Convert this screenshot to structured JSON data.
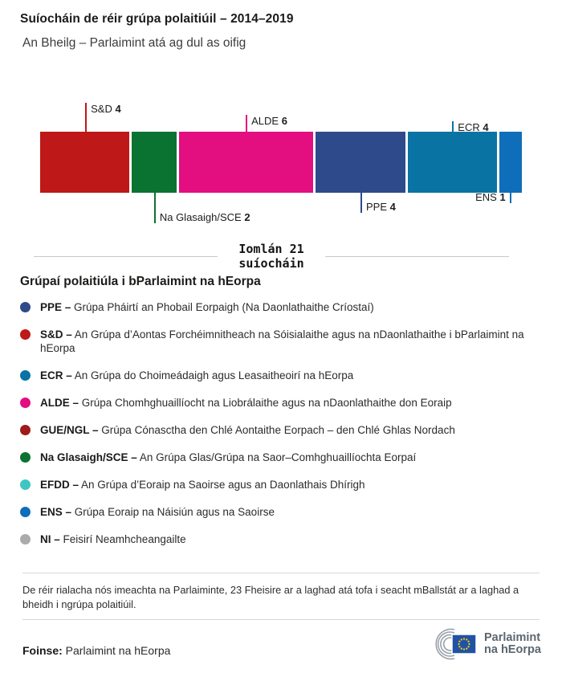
{
  "header": {
    "title": "Suíocháin de réir grúpa polaitiúil – 2014–2019",
    "subtitle": "An Bheilg – Parlaimint atá ag dul as oifig"
  },
  "chart_data": {
    "type": "bar",
    "orientation": "horizontal-stacked",
    "title": "Suíocháin de réir grúpa polaitiúil – 2014–2019",
    "subtitle": "An Bheilg – Parlaimint atá ag dul as oifig",
    "total_seats": 21,
    "categories": [
      "S&D",
      "Na Glasaigh/SCE",
      "ALDE",
      "PPE",
      "ECR",
      "ENS"
    ],
    "values": [
      4,
      2,
      6,
      4,
      4,
      1
    ],
    "segments": [
      {
        "group": "S&D",
        "seats": 4,
        "color": "#be1818",
        "callout": "up",
        "tick_len": 36
      },
      {
        "group": "Na Glasaigh/SCE",
        "seats": 2,
        "color": "#0b7331",
        "callout": "down",
        "tick_len": 38
      },
      {
        "group": "ALDE",
        "seats": 6,
        "color": "#e30e80",
        "callout": "up",
        "tick_len": 21
      },
      {
        "group": "PPE",
        "seats": 4,
        "color": "#2e4a8b",
        "callout": "down",
        "tick_len": 25
      },
      {
        "group": "ECR",
        "seats": 4,
        "color": "#0973a4",
        "callout": "up",
        "tick_len": 13
      },
      {
        "group": "ENS",
        "seats": 1,
        "color": "#0e6eba",
        "callout": "down",
        "tick_len": 13,
        "label_side": "left"
      }
    ]
  },
  "total": {
    "line1": "Iomlán 21",
    "line2": "suíocháin"
  },
  "legend": {
    "heading": "Grúpaí polaitiúla i bParlaimint na hEorpa",
    "items": [
      {
        "abbr": "PPE –",
        "desc": "Grúpa Pháirtí an Phobail Eorpaigh (Na Daonlathaithe Críostaí)",
        "color": "#2e4a8b"
      },
      {
        "abbr": "S&D –",
        "desc": "An Grúpa d’Aontas Forchéimnitheach na Sóisialaithe agus na nDaonlathaithe i bParlaimint na hEorpa",
        "color": "#be1818"
      },
      {
        "abbr": "ECR –",
        "desc": "An Grúpa do Choimeádaigh agus Leasaitheoirí na hEorpa",
        "color": "#0973a4"
      },
      {
        "abbr": "ALDE –",
        "desc": "Grúpa Chomhghuaillíocht na Liobrálaithe agus na nDaonlathaithe don Eoraip",
        "color": "#e30e80"
      },
      {
        "abbr": "GUE/NGL –",
        "desc": "Grúpa Cónasctha den Chlé Aontaithe Eorpach – den Chlé Ghlas Nordach",
        "color": "#9e1b1b"
      },
      {
        "abbr": "Na Glasaigh/SCE –",
        "desc": "An Grúpa Glas/Grúpa na Saor–Comhghuaillíochta Eorpaí",
        "color": "#0b7331"
      },
      {
        "abbr": "EFDD –",
        "desc": "An Grúpa d’Eoraip na Saoirse agus an Daonlathais Dhírigh",
        "color": "#3ec6c3"
      },
      {
        "abbr": "ENS –",
        "desc": "Grúpa Eoraip na Náisiún agus na Saoirse",
        "color": "#0e6eba"
      },
      {
        "abbr": "NI –",
        "desc": "Feisirí Neamhcheangailte",
        "color": "#ababab"
      }
    ]
  },
  "footer": {
    "note": "De réir rialacha nós imeachta na Parlaiminte, 23 Fheisire ar a laghad atá tofa i seacht mBallstát ar a laghad a bheidh i ngrúpa polaitiúil.",
    "source_label": "Foinse:",
    "source_value": " Parlaimint na hEorpa",
    "logo_line1": "Parlaimint",
    "logo_line2": "na hEorpa"
  }
}
